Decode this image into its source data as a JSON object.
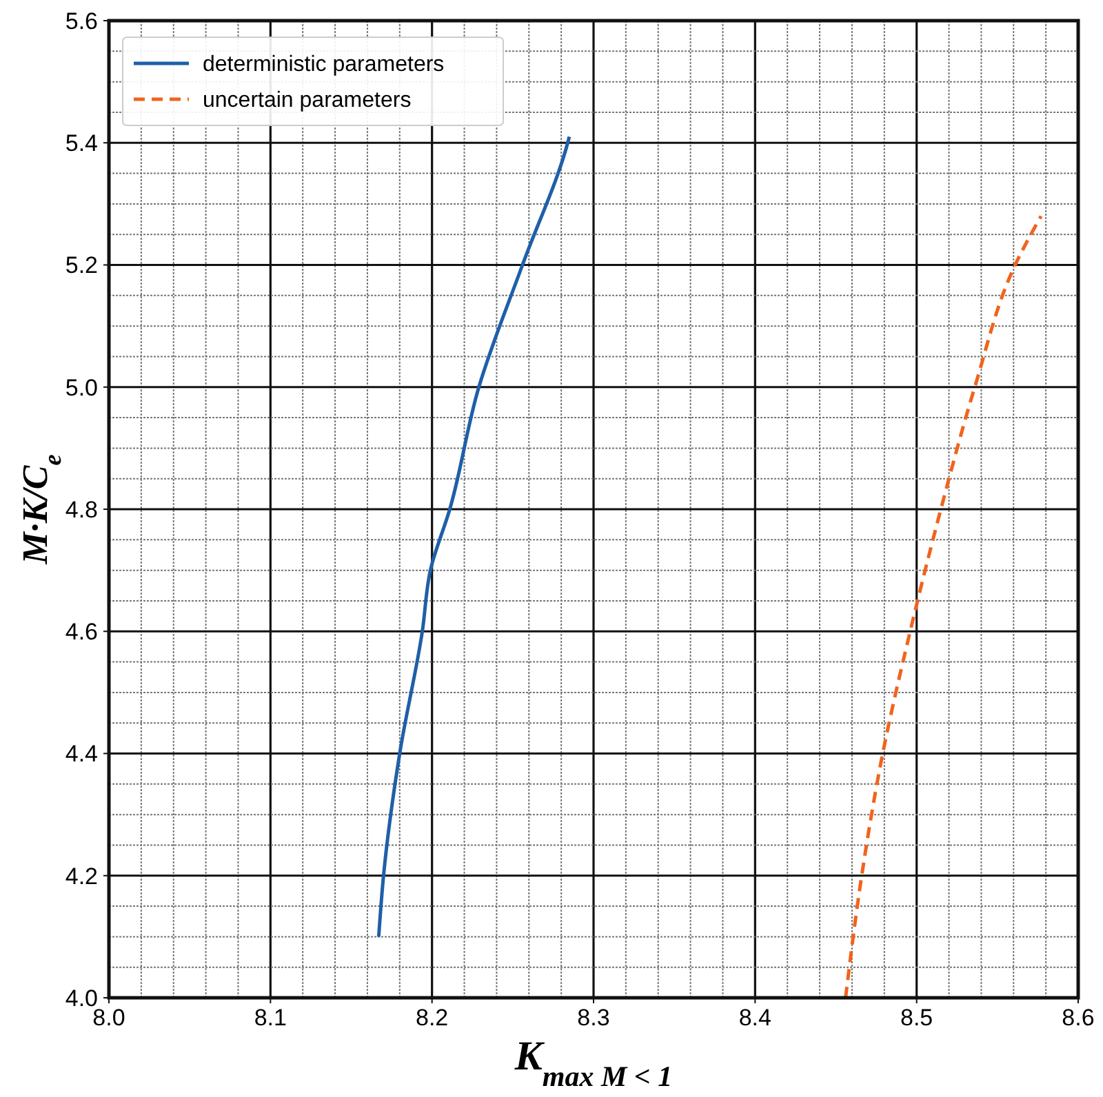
{
  "chart_data": {
    "type": "line",
    "xlabel": "K$_{max M < 1}$",
    "ylabel": "M·K/C$_{e}$",
    "xlim": [
      8.0,
      8.6
    ],
    "ylim": [
      4.0,
      5.6
    ],
    "xticks": [
      {
        "value": 8,
        "label": "8.0"
      },
      {
        "value": 8.02,
        "label": null
      },
      {
        "value": 8.04,
        "label": null
      },
      {
        "value": 8.06,
        "label": null
      },
      {
        "value": 8.08,
        "label": null
      },
      8.1,
      {
        "value": 8.12,
        "label": null
      },
      {
        "value": 8.14,
        "label": null
      },
      {
        "value": 8.16,
        "label": null
      },
      {
        "value": 8.18,
        "label": null
      },
      8.2,
      {
        "value": 8.22,
        "label": null
      },
      {
        "value": 8.24,
        "label": null
      },
      {
        "value": 8.26,
        "label": null
      },
      {
        "value": 8.28,
        "label": null
      },
      8.3,
      {
        "value": 8.32,
        "label": null
      },
      {
        "value": 8.34,
        "label": null
      },
      {
        "value": 8.36,
        "label": null
      },
      {
        "value": 8.38,
        "label": null
      },
      8.4,
      {
        "value": 8.42,
        "label": null
      },
      {
        "value": 8.44,
        "label": null
      },
      {
        "value": 8.46,
        "label": null
      },
      {
        "value": 8.48,
        "label": null
      },
      8.5,
      {
        "value": 8.52,
        "label": null
      },
      {
        "value": 8.54,
        "label": null
      },
      {
        "value": 8.56,
        "label": null
      },
      {
        "value": 8.58,
        "label": null
      },
      8.6
    ],
    "yticks": [
      {
        "value": 4,
        "label": "4.0"
      },
      {
        "value": 4.05,
        "label": null
      },
      {
        "value": 4.1,
        "label": null
      },
      {
        "value": 4.15,
        "label": null
      },
      4.2,
      {
        "value": 4.25,
        "label": null
      },
      {
        "value": 4.3,
        "label": null
      },
      {
        "value": 4.35,
        "label": null
      },
      4.4,
      {
        "value": 4.45,
        "label": null
      },
      {
        "value": 4.5,
        "label": null
      },
      {
        "value": 4.55,
        "label": null
      },
      4.6,
      {
        "value": 4.65,
        "label": null
      },
      {
        "value": 4.7,
        "label": null
      },
      {
        "value": 4.75,
        "label": null
      },
      4.8,
      {
        "value": 4.85,
        "label": null
      },
      {
        "value": 4.9,
        "label": null
      },
      {
        "value": 4.95,
        "label": null
      },
      {
        "value": 5,
        "label": "5.0"
      },
      {
        "value": 5.05,
        "label": null
      },
      {
        "value": 5.1,
        "label": null
      },
      {
        "value": 5.15,
        "label": null
      },
      5.2,
      {
        "value": 5.25,
        "label": null
      },
      {
        "value": 5.3,
        "label": null
      },
      {
        "value": 5.35,
        "label": null
      },
      5.4,
      {
        "value": 5.45,
        "label": null
      },
      {
        "value": 5.5,
        "label": null
      },
      {
        "value": 5.55,
        "label": null
      },
      5.6
    ],
    "grid": true,
    "legend": "top left",
    "marker": "none",
    "series": [
      {
        "name": "deterministic parameters",
        "color": "#1f5fa8",
        "line_style": "solid",
        "x": [
          8.167,
          8.17,
          8.18,
          8.194,
          8.199,
          8.211,
          8.229,
          8.256,
          8.284,
          8.285
        ],
        "values": [
          4.1,
          4.2,
          4.4,
          4.6,
          4.7,
          4.8,
          5.0,
          5.2,
          5.4,
          5.41
        ]
      },
      {
        "name": "uncertain parameters",
        "color": "#f0641e",
        "line_style": "dashed",
        "x": [
          8.456,
          8.466,
          8.479,
          8.496,
          8.515,
          8.536,
          8.561,
          8.577
        ],
        "values": [
          4.0,
          4.2,
          4.4,
          4.6,
          4.8,
          5.0,
          5.2,
          5.28
        ]
      }
    ]
  }
}
